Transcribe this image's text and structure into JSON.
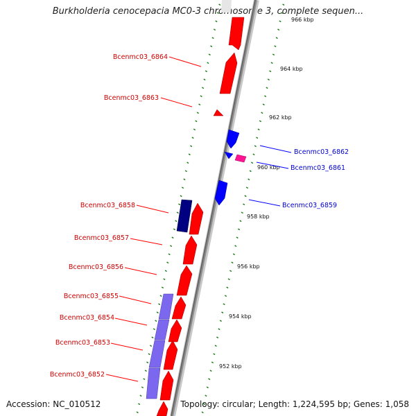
{
  "title": "Burkholderia cenocepacia MC0-3 chromosome 3, complete sequen...",
  "footer": {
    "accession": "Accession: NC_010512",
    "topology": "Topology: circular; Length: 1,224,595 bp; Genes: 1,058"
  },
  "colors": {
    "forward_gene": "#ff0000",
    "reverse_gene": "#0000ff",
    "reverse_gene_dark": "#000080",
    "rna_gene": "#ff1493",
    "purple_gene": "#7b68ee",
    "tick": "#1a7a1a",
    "backbone": "#808080"
  },
  "kbp_labels": [
    "966 kbp",
    "964 kbp",
    "962 kbp",
    "960 kbp",
    "958 kbp",
    "956 kbp",
    "954 kbp",
    "952 kbp"
  ],
  "genes": [
    {
      "name": "Bcenmc03_6864",
      "side": "left"
    },
    {
      "name": "Bcenmc03_6863",
      "side": "left"
    },
    {
      "name": "Bcenmc03_6862",
      "side": "right"
    },
    {
      "name": "Bcenmc03_6861",
      "side": "right"
    },
    {
      "name": "Bcenmc03_6859",
      "side": "right"
    },
    {
      "name": "Bcenmc03_6858",
      "side": "left"
    },
    {
      "name": "Bcenmc03_6857",
      "side": "left"
    },
    {
      "name": "Bcenmc03_6856",
      "side": "left"
    },
    {
      "name": "Bcenmc03_6855",
      "side": "left"
    },
    {
      "name": "Bcenmc03_6854",
      "side": "left"
    },
    {
      "name": "Bcenmc03_6853",
      "side": "left"
    },
    {
      "name": "Bcenmc03_6852",
      "side": "left"
    }
  ]
}
